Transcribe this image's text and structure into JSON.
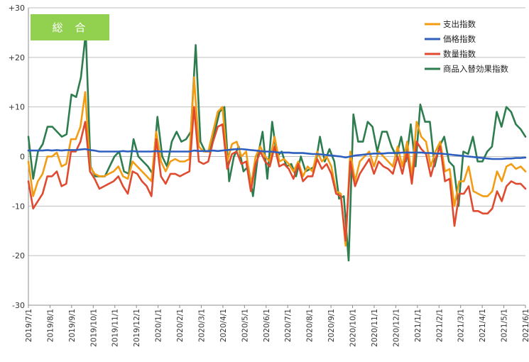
{
  "badge": {
    "label": "総 合",
    "color": "#92d050"
  },
  "chart_data": {
    "type": "line",
    "title": "総 合",
    "ylim": [
      -30,
      30
    ],
    "yticks": [
      30,
      20,
      10,
      0,
      -10,
      -20,
      -30
    ],
    "ytick_labels": [
      "+30",
      "+20",
      "+10",
      "0",
      "-10",
      "-20",
      "-30"
    ],
    "grid": "horizontal",
    "legend_position": "top-right",
    "x_tick_labels": [
      "2019/7/1",
      "2019/8/1",
      "2019/9/1",
      "2019/10/1",
      "2019/11/1",
      "2019/12/1",
      "2020/1/1",
      "2020/2/1",
      "2020/3/1",
      "2020/4/1",
      "2020/5/1",
      "2020/6/1",
      "2020/7/1",
      "2020/8/1",
      "2020/9/1",
      "2020/10/1",
      "2020/11/1",
      "2020/12/1",
      "2021/1/1",
      "2021/2/1",
      "2021/3/1",
      "2021/4/1",
      "2021/5/1",
      "2021/6/1"
    ],
    "series": [
      {
        "name": "支出指数",
        "color": "#f39c12",
        "values": [
          -1,
          -8,
          -5,
          -3.5,
          0,
          0,
          0.8,
          -2,
          -1.5,
          3.5,
          3.5,
          6,
          13,
          -2,
          -3.5,
          -4,
          -4,
          -3.5,
          -3,
          -2,
          -4,
          -4.5,
          -1,
          -2,
          -3,
          -4,
          -5,
          5,
          -1,
          -3,
          -1,
          -0.5,
          -1,
          -1,
          -0.5,
          16,
          2,
          1,
          1,
          5,
          9,
          10,
          -1,
          2.5,
          3,
          0,
          1,
          -6,
          0,
          2,
          0,
          -1,
          4,
          -1,
          -0.5,
          -1.5,
          -3,
          -1,
          -4,
          -2,
          -3,
          1,
          -1,
          0,
          -2,
          -7,
          -7.5,
          -18,
          1,
          -5,
          -1,
          0,
          1,
          -2,
          1,
          0,
          -1,
          -2,
          2,
          -2,
          3,
          -4,
          7,
          4,
          3,
          -2,
          1,
          3,
          -3,
          -2.5,
          -10,
          -5,
          -5,
          -2,
          -7,
          -7.5,
          -8,
          -8,
          -7,
          -3,
          -5,
          -2,
          -1.5,
          -2.5,
          -2,
          -3
        ]
      },
      {
        "name": "価格指数",
        "color": "#2e5fbf",
        "values": [
          1.2,
          1.2,
          1.2,
          1.2,
          1.3,
          1.2,
          1.3,
          1.2,
          1.3,
          1.3,
          1.3,
          1.4,
          1.5,
          1.3,
          1.2,
          1,
          1,
          1,
          1,
          1,
          1.1,
          1,
          1.1,
          1,
          1,
          1,
          1,
          1.1,
          1,
          1,
          1,
          1,
          1,
          1,
          1,
          1.2,
          1.1,
          1.1,
          1.1,
          1.2,
          1.1,
          1.2,
          1.3,
          1.4,
          1.5,
          1.5,
          1.4,
          1.3,
          1.2,
          1.1,
          1,
          1,
          0.9,
          0.8,
          0.8,
          0.8,
          0.7,
          0.7,
          0.7,
          0.6,
          0.5,
          0.5,
          0.4,
          0.3,
          0.2,
          0.1,
          0,
          -0.2,
          0,
          0.2,
          0.3,
          0.4,
          0.5,
          0.6,
          0.6,
          0.6,
          0.7,
          0.7,
          0.7,
          0.8,
          0.8,
          0.8,
          0.8,
          0.8,
          0.7,
          0.7,
          0.6,
          0.6,
          0.5,
          0.4,
          0.3,
          0.2,
          0.1,
          0,
          -0.1,
          -0.2,
          -0.3,
          -0.4,
          -0.5,
          -0.5,
          -0.5,
          -0.4,
          -0.4,
          -0.3,
          -0.3,
          -0.2
        ]
      },
      {
        "name": "数量指数",
        "color": "#e04a2f",
        "values": [
          -5,
          -10.5,
          -9,
          -7.5,
          -4,
          -4,
          -3,
          -6,
          -5.5,
          1,
          1,
          3,
          7,
          -3,
          -4.5,
          -6.5,
          -6,
          -5.5,
          -5,
          -4,
          -6,
          -7.5,
          -3,
          -3.5,
          -5,
          -6,
          -8,
          3.5,
          -4,
          -5.5,
          -3.5,
          -3.5,
          -4,
          -3.5,
          -3,
          10,
          -1,
          -1.5,
          -1,
          3,
          6,
          6.5,
          -2.5,
          0.5,
          1,
          -1.5,
          -1,
          -7,
          -1.5,
          1,
          -1,
          -2,
          2,
          -2,
          -1.5,
          -2.5,
          -4.5,
          -1.5,
          -5,
          -4,
          -4,
          -0.5,
          -2.5,
          -1.5,
          -3.5,
          -7.5,
          -8,
          -17,
          -1,
          -6,
          -3.5,
          -2,
          -0.5,
          -3.5,
          -1,
          -2,
          -2.5,
          -3.5,
          0,
          -3.5,
          1,
          -5.5,
          3,
          1.5,
          0.5,
          -4,
          -0.5,
          2,
          -5,
          -4.5,
          -14,
          -7.5,
          -7.5,
          -6,
          -11,
          -11,
          -11.5,
          -11.5,
          -10.5,
          -7,
          -9,
          -6,
          -5,
          -5.5,
          -5.5,
          -6.5
        ]
      },
      {
        "name": "商品入替効果指数",
        "color": "#2e7d4f",
        "values": [
          4,
          -4.5,
          1,
          2.5,
          6,
          6,
          5,
          4,
          4.5,
          12.5,
          12,
          16,
          25,
          -2,
          -4,
          -4,
          -4,
          -2,
          0,
          1,
          -3,
          -3.5,
          3.5,
          0,
          -1,
          -2,
          -3.5,
          8,
          0,
          -2,
          3,
          5,
          3,
          3.5,
          5,
          22.5,
          3,
          1,
          1,
          5,
          9,
          10,
          -5,
          0,
          2,
          -3,
          -2,
          -8,
          0,
          5,
          -4.5,
          7,
          0,
          1,
          -2,
          -1.5,
          -4,
          0,
          -3,
          -2.5,
          -2,
          4,
          -1,
          1.5,
          -1,
          -8.5,
          -8,
          -21,
          8.5,
          3,
          3,
          7,
          6,
          1,
          5,
          5,
          2,
          0,
          4,
          -1,
          6.5,
          -2,
          10.5,
          7,
          7,
          -2,
          2,
          4,
          -1,
          -2,
          -10,
          1,
          0.5,
          4,
          -1,
          -1,
          1,
          2,
          9,
          6,
          10,
          9,
          6.5,
          5.5,
          4
        ]
      }
    ]
  }
}
